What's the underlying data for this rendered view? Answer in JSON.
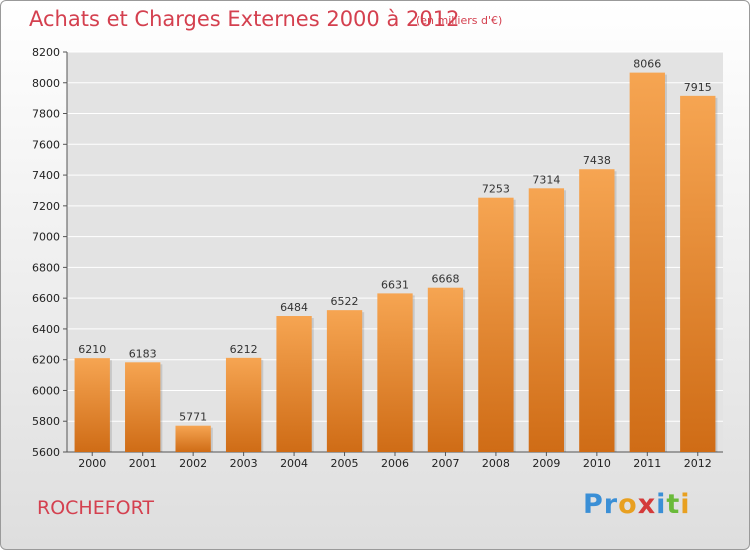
{
  "header": {
    "title": "Achats et Charges Externes 2000 à 2012",
    "unit": "(en milliers d'€)"
  },
  "footer": {
    "commune": "ROCHEFORT",
    "logo_text": "Proxiti",
    "logo_colors": [
      "#3a8fd6",
      "#3a8fd6",
      "#e8a020",
      "#d43a3a",
      "#3a8fd6",
      "#6aba3a",
      "#e8a020"
    ]
  },
  "colors": {
    "title": "#d4404f",
    "bar_light": "#f6a552",
    "bar_dark": "#cf6c16",
    "grid": "#ffffff",
    "plot_bg": "#e3e3e3"
  },
  "chart_data": {
    "type": "bar",
    "title": "Achats et Charges Externes 2000 à 2012",
    "subtitle": "(en milliers d'€)",
    "categories": [
      "2000",
      "2001",
      "2002",
      "2003",
      "2004",
      "2005",
      "2006",
      "2007",
      "2008",
      "2009",
      "2010",
      "2011",
      "2012"
    ],
    "values": [
      6210,
      6183,
      5771,
      6212,
      6484,
      6522,
      6631,
      6668,
      7253,
      7314,
      7438,
      8066,
      7915
    ],
    "ylim": [
      5600,
      8200
    ],
    "yticks": [
      5600,
      5800,
      6000,
      6200,
      6400,
      6600,
      6800,
      7000,
      7200,
      7400,
      7600,
      7800,
      8000,
      8200
    ],
    "grid": true,
    "data_labels": true
  }
}
